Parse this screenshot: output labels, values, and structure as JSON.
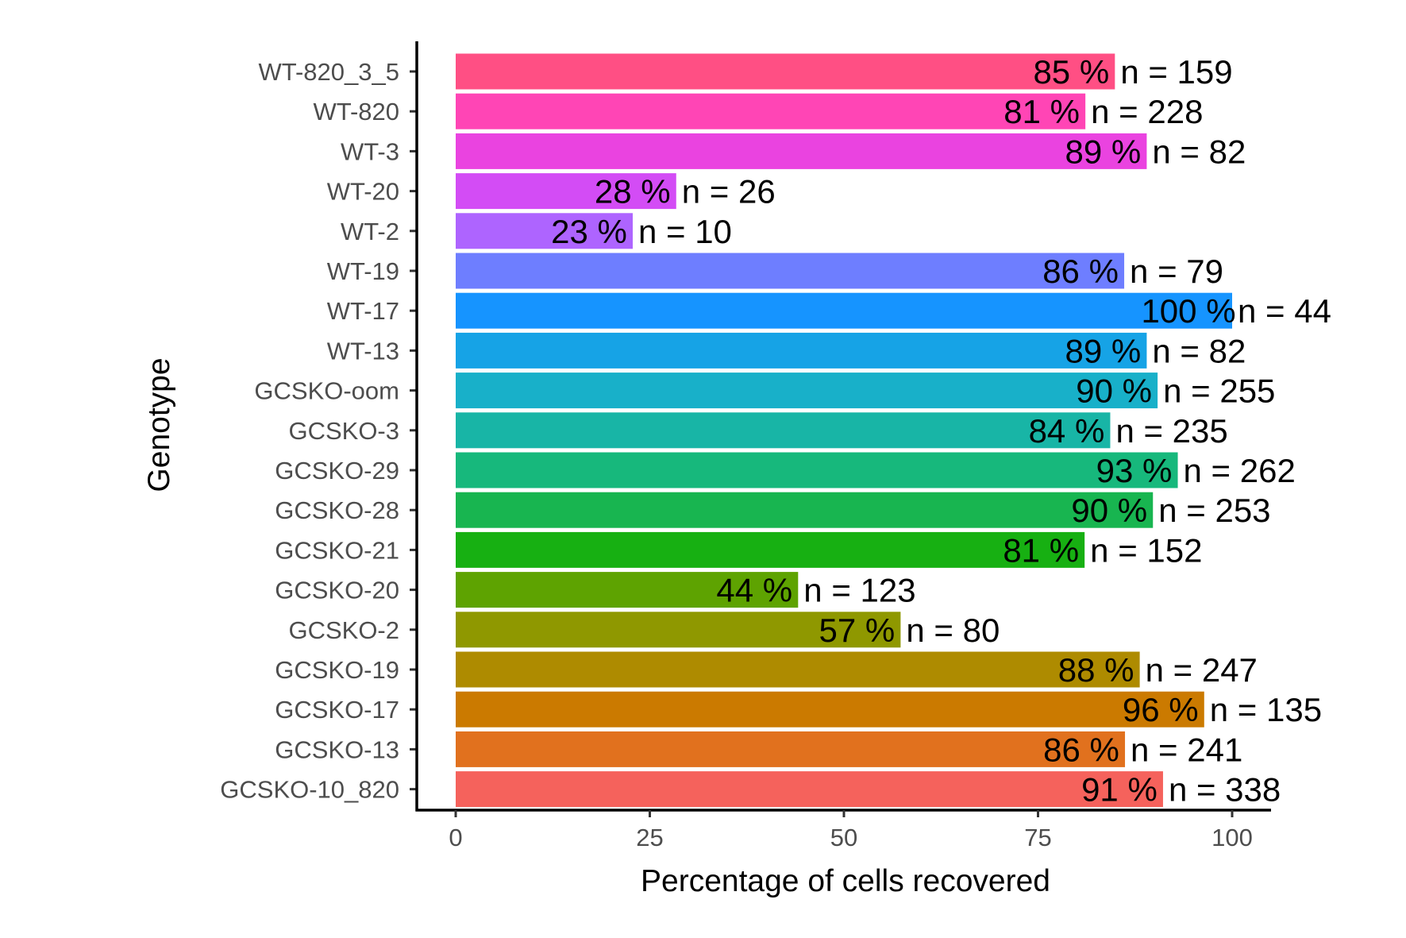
{
  "chart_data": {
    "type": "bar",
    "orientation": "horizontal",
    "xlabel": "Percentage of cells recovered",
    "ylabel": "Genotype",
    "xlim": [
      0,
      105
    ],
    "xticks": [
      "0",
      "25",
      "50",
      "75",
      "100"
    ],
    "grid": false,
    "legend": "none",
    "categories": [
      "WT-820_3_5",
      "WT-820",
      "WT-3",
      "WT-20",
      "WT-2",
      "WT-19",
      "WT-17",
      "WT-13",
      "GCSKO-oom",
      "GCSKO-3",
      "GCSKO-29",
      "GCSKO-28",
      "GCSKO-21",
      "GCSKO-20",
      "GCSKO-2",
      "GCSKO-19",
      "GCSKO-17",
      "GCSKO-13",
      "GCSKO-10_820"
    ],
    "values": [
      84.9,
      81.1,
      89.0,
      28.4,
      22.8,
      86.1,
      100,
      89.0,
      90.4,
      84.3,
      93.0,
      89.8,
      81.0,
      44.1,
      57.3,
      88.1,
      96.4,
      86.2,
      91.1
    ],
    "value_labels": [
      "85 %",
      "81 %",
      "89 %",
      "28 %",
      "23 %",
      "86 %",
      "100 %",
      "89 %",
      "90 %",
      "84 %",
      "93 %",
      "90 %",
      "81 %",
      "44 %",
      "57 %",
      "88 %",
      "96 %",
      "86 %",
      "91 %"
    ],
    "count_labels": [
      "n = 159",
      "n = 228",
      "n = 82",
      "n = 26",
      "n = 10",
      "n = 79",
      "n = 44",
      "n = 82",
      "n = 255",
      "n = 235",
      "n = 262",
      "n = 253",
      "n = 152",
      "n = 123",
      "n = 80",
      "n = 247",
      "n = 135",
      "n = 241",
      "n = 338"
    ],
    "colors": [
      "#FF4F84",
      "#FF45B5",
      "#EA43E0",
      "#D34CF5",
      "#AE64FF",
      "#6E7EFF",
      "#1694FF",
      "#16A3E6",
      "#18B0C9",
      "#18B5A6",
      "#17B87C",
      "#18B550",
      "#17B012",
      "#5EA301",
      "#8F9800",
      "#AE8B00",
      "#CB7A00",
      "#E1711E",
      "#F5625C"
    ]
  }
}
